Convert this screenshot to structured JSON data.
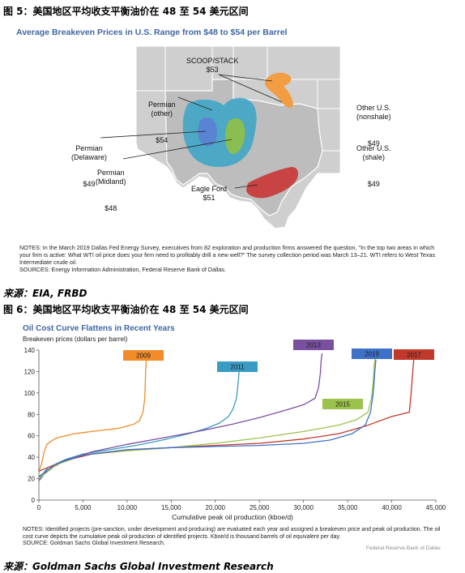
{
  "figure5": {
    "caption": "图 5：美国地区平均收支平衡油价在 48 至 54 美元区间",
    "title": "Average Breakeven Prices in U.S. Range from $48 to $54 per Barrel",
    "regions": [
      {
        "id": "scoop",
        "name": "SCOOP/STACK",
        "price": "$53",
        "color": "#f39a3a"
      },
      {
        "id": "permian-other",
        "name": "Permian\n(other)",
        "price": "$54",
        "color": "#3aa4c8"
      },
      {
        "id": "permian-delaware",
        "name": "Permian\n(Delaware)",
        "price": "$49",
        "color": "#5b7fd1"
      },
      {
        "id": "permian-midland",
        "name": "Permian\n(Midland)",
        "price": "$48",
        "color": "#8dbf4a"
      },
      {
        "id": "eagle-ford",
        "name": "Eagle Ford",
        "price": "$51",
        "color": "#c83c3c"
      }
    ],
    "other_nonshale": {
      "name": "Other U.S.\n(nonshale)",
      "price": "$49"
    },
    "other_shale": {
      "name": "Other U.S.\n(shale)",
      "price": "$49"
    },
    "notes": "NOTES: In the March 2019 Dallas Fed Energy Survey, executives from 82 exploration and production firms answered the question, \"In the top two areas in which your firm is active: What WTI oil price does your firm need to profitably drill a new well?\" The survey collection period was March 13–21. WTI refers to West Texas Intermediate crude oil.",
    "sources": "SOURCES: Energy Information Administration, Federal Reserve Bank of Dallas.",
    "source_line": "来源：EIA, FRBD"
  },
  "figure6": {
    "caption": "图 6：美国地区平均收支平衡油价在 48 至 54 美元区间",
    "title": "Oil Cost Curve Flattens in Recent Years",
    "notes": "NOTES: Identified projects (pre-sanction, under development and producing) are evaluated each year and assigned a breakeven price and peak oil production. The oil cost curve depicts the cumulative peak oil production of identified projects. Kboe/d is thousand barrels of oil equivalent per day.",
    "source": "SOURCE: Goldman Sachs Global Investment Research.",
    "credit": "Federal Reserve Bank of Dallas",
    "source_line": "来源：Goldman Sachs Global Investment Research"
  },
  "chart_data": {
    "type": "line",
    "title": "Oil Cost Curve Flattens in Recent Years",
    "xlabel": "Cumulative peak oil production (kboe/d)",
    "ylabel": "Breakeven prices (dollars per barrel)",
    "xlim": [
      0,
      45000
    ],
    "ylim": [
      0,
      140
    ],
    "xticks": [
      0,
      5000,
      10000,
      15000,
      20000,
      25000,
      30000,
      35000,
      40000,
      45000
    ],
    "xtick_labels": [
      "0",
      "5,000",
      "10,000",
      "15,000",
      "20,000",
      "25,000",
      "30,000",
      "35,000",
      "40,000",
      "45,000"
    ],
    "yticks": [
      0,
      20,
      40,
      60,
      80,
      100,
      120,
      140
    ],
    "grid": false,
    "legend": "inline labels",
    "series": [
      {
        "name": "2009",
        "color": "#f28c28",
        "x": [
          0,
          300,
          600,
          900,
          1400,
          2000,
          3000,
          4000,
          5000,
          6000,
          7000,
          8000,
          9000,
          10000,
          10800,
          11400,
          11800,
          12000,
          12100,
          12200
        ],
        "y": [
          26,
          34,
          45,
          52,
          55,
          58,
          60,
          62,
          63,
          64,
          65,
          66,
          67,
          69,
          71,
          74,
          82,
          95,
          120,
          135
        ]
      },
      {
        "name": "2011",
        "color": "#3a9cc4",
        "x": [
          0,
          1000,
          3000,
          5000,
          8000,
          11000,
          14000,
          17000,
          19000,
          20500,
          21500,
          22000,
          22400,
          22600,
          22700
        ],
        "y": [
          20,
          30,
          38,
          43,
          47,
          51,
          56,
          62,
          67,
          72,
          78,
          85,
          95,
          110,
          121
        ]
      },
      {
        "name": "2013",
        "color": "#7a4fa0",
        "x": [
          0,
          1000,
          3000,
          6000,
          10000,
          14000,
          18000,
          22000,
          25000,
          28000,
          30000,
          31300,
          31700,
          31900,
          32000,
          32100
        ],
        "y": [
          18,
          28,
          37,
          45,
          52,
          58,
          64,
          71,
          77,
          84,
          89,
          95,
          105,
          118,
          130,
          137
        ]
      },
      {
        "name": "2015",
        "color": "#9bc24b",
        "x": [
          0,
          2000,
          5000,
          10000,
          15000,
          20000,
          25000,
          30000,
          34000,
          36000,
          37300,
          37700,
          37900,
          38000,
          38100
        ],
        "y": [
          20,
          33,
          42,
          46,
          49,
          53,
          58,
          64,
          70,
          75,
          82,
          95,
          110,
          125,
          132
        ]
      },
      {
        "name": "2017",
        "color": "#c0392b",
        "x": [
          0,
          3000,
          6000,
          10000,
          15000,
          20000,
          25000,
          30000,
          34000,
          37000,
          40000,
          42000,
          42200,
          42400,
          42500
        ],
        "y": [
          27,
          37,
          43,
          47,
          49,
          51,
          53,
          57,
          62,
          69,
          78,
          82,
          100,
          122,
          132
        ]
      },
      {
        "name": "2019",
        "color": "#3e71c8",
        "x": [
          0,
          2000,
          5000,
          10000,
          15000,
          20000,
          25000,
          30000,
          33000,
          35500,
          37000,
          37600,
          37900,
          38100,
          38200
        ],
        "y": [
          22,
          34,
          42,
          47,
          49,
          50,
          51,
          53,
          56,
          62,
          70,
          82,
          100,
          122,
          131
        ]
      }
    ]
  }
}
